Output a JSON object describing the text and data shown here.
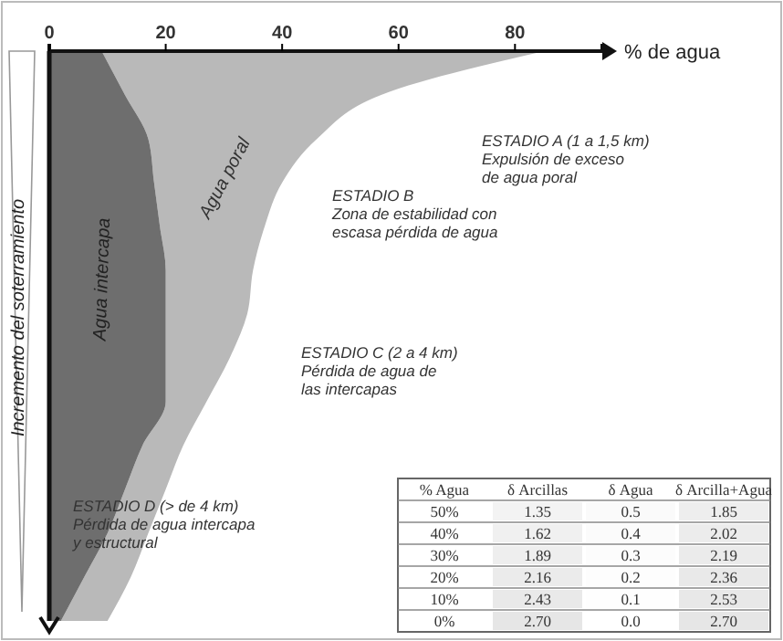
{
  "chart_data": [
    {
      "type": "area",
      "stacked": true,
      "orientation": "horizontal",
      "xlabel": "% de agua",
      "ylabel": "Incremento del soterramiento",
      "xlim": [
        0,
        95
      ],
      "xticks": [
        0,
        20,
        40,
        60,
        80
      ],
      "tick_labels": "x",
      "categories": [
        null,
        null,
        null,
        null,
        null,
        null,
        null,
        null,
        null,
        null,
        null,
        null,
        null,
        null
      ],
      "series": [
        {
          "name": "Agua intercapa",
          "color": "#6e6e6e",
          "values": [
            9,
            13,
            17,
            18,
            19,
            20,
            20,
            20,
            20,
            16,
            13,
            10,
            6,
            2
          ]
        },
        {
          "name": "Agua poral",
          "color": "#b9b9b9",
          "values": [
            76,
            44,
            29,
            22,
            18,
            15,
            14,
            11,
            7,
            7,
            7,
            7,
            8,
            8
          ]
        }
      ],
      "annotations": [
        "ESTADIO A (1 a 1,5 km)\nExpulsión de exceso\nde agua poral",
        "ESTADIO B\nZona de estabilidad con\nescasa pérdida de agua",
        "ESTADIO C (2 a 4 km)\nPérdida de agua de\nlas intercapas",
        "ESTADIO D (> de 4 km)\nPérdida de agua intercapa\ny estructural"
      ]
    },
    {
      "type": "heatmap",
      "ylabel": "% Agua",
      "categories": [
        "δ Arcillas",
        "δ Agua",
        "δ Arcilla+Agua"
      ],
      "y_categories": [
        "50%",
        "40%",
        "30%",
        "20%",
        "10%",
        "0%"
      ],
      "cells": [
        [
          1.35,
          0.5,
          1.85
        ],
        [
          1.62,
          0.4,
          2.02
        ],
        [
          1.89,
          0.3,
          2.19
        ],
        [
          2.16,
          0.2,
          2.36
        ],
        [
          2.43,
          0.1,
          2.53
        ],
        [
          2.7,
          0.0,
          2.7
        ]
      ],
      "cell_labels": [
        [
          "1.35",
          "0.5",
          "1.85"
        ],
        [
          "1.62",
          "0.4",
          "2.02"
        ],
        [
          "1.89",
          "0.3",
          "2.19"
        ],
        [
          "2.16",
          "0.2",
          "2.36"
        ],
        [
          "2.43",
          "0.1",
          "2.53"
        ],
        [
          "2.70",
          "0.0",
          "2.70"
        ]
      ]
    }
  ]
}
